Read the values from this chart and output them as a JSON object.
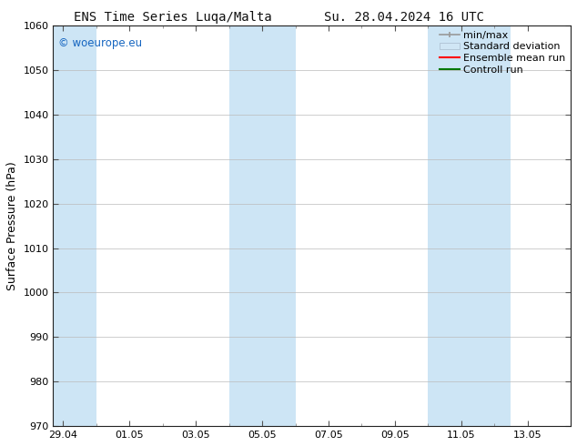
{
  "title_left": "ENS Time Series Luqa/Malta",
  "title_right": "Su. 28.04.2024 16 UTC",
  "ylabel": "Surface Pressure (hPa)",
  "ylim": [
    970,
    1060
  ],
  "yticks": [
    970,
    980,
    990,
    1000,
    1010,
    1020,
    1030,
    1040,
    1050,
    1060
  ],
  "xtick_labels": [
    "29.04",
    "01.05",
    "03.05",
    "05.05",
    "07.05",
    "09.05",
    "11.05",
    "13.05"
  ],
  "xtick_positions": [
    0,
    2,
    4,
    6,
    8,
    10,
    12,
    14
  ],
  "xlim": [
    -0.3,
    15.3
  ],
  "shaded_bands": [
    {
      "x_start": -0.3,
      "x_end": 1.0
    },
    {
      "x_start": 5.0,
      "x_end": 7.0
    },
    {
      "x_start": 11.0,
      "x_end": 13.5
    }
  ],
  "watermark": "© woeurope.eu",
  "watermark_color": "#1565c0",
  "bg_color": "#ffffff",
  "plot_bg_color": "#ffffff",
  "shaded_color": "#cde5f5",
  "grid_color": "#bbbbbb",
  "legend_items": [
    {
      "label": "min/max",
      "color": "#999999",
      "lw": 1.2,
      "style": "errorbar"
    },
    {
      "label": "Standard deviation",
      "color": "#ccddee",
      "lw": 8,
      "style": "band"
    },
    {
      "label": "Ensemble mean run",
      "color": "#ff0000",
      "lw": 1.5,
      "style": "line"
    },
    {
      "label": "Controll run",
      "color": "#007700",
      "lw": 1.5,
      "style": "line"
    }
  ],
  "font_family": "DejaVu Sans Mono",
  "tick_font_family": "DejaVu Sans",
  "title_fontsize": 10,
  "tick_fontsize": 8,
  "ylabel_fontsize": 9,
  "legend_fontsize": 8
}
